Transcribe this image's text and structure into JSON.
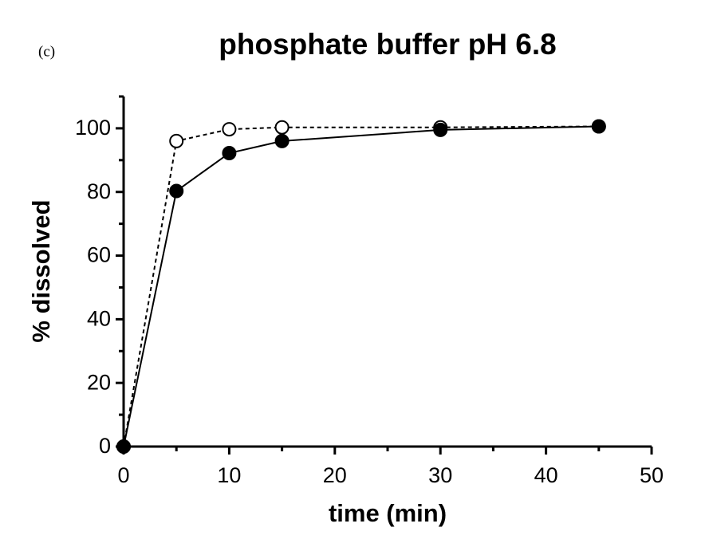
{
  "chart_data": {
    "type": "line",
    "panel_label": "(c)",
    "title": "phosphate buffer pH 6.8",
    "x_label": "time (min)",
    "y_label": "% dissolved",
    "x": [
      0,
      5,
      10,
      15,
      30,
      45
    ],
    "series": [
      {
        "color": "#000000",
        "marker_fill": "#000000",
        "dashed": false,
        "values": [
          0,
          80.3,
          92.2,
          96.0,
          99.5,
          100.6
        ]
      },
      {
        "color": "#000000",
        "marker_fill": "#ffffff",
        "dashed": true,
        "values": [
          0,
          96.0,
          99.7,
          100.3,
          100.3,
          100.6
        ]
      }
    ],
    "xlim": [
      0,
      50
    ],
    "xticks": [
      0,
      10,
      20,
      30,
      40,
      50
    ],
    "x_minor_ticks": [
      5,
      15,
      25,
      35,
      45
    ],
    "ylim": [
      0,
      110
    ],
    "yticks": [
      0,
      20,
      40,
      60,
      80,
      100
    ],
    "y_minor_ticks": [
      10,
      30,
      50,
      70,
      90,
      110
    ],
    "grid": false
  }
}
